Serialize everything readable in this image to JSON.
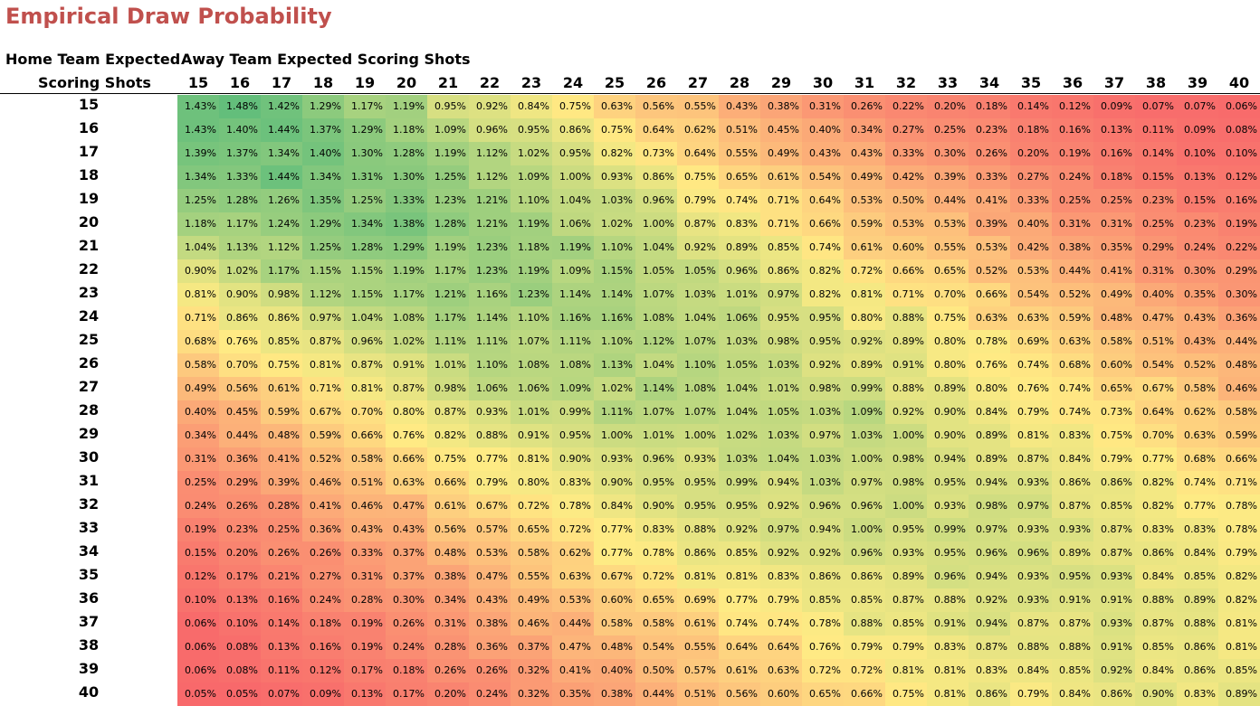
{
  "title": "Empirical Draw Probability",
  "row_header_line1": "Home Team Expected",
  "row_header_line2": "Scoring Shots",
  "col_header": "Away Team Expected Scoring Shots",
  "chart_data": {
    "type": "heatmap",
    "title": "Empirical Draw Probability",
    "xlabel": "Away Team Expected Scoring Shots",
    "ylabel": "Home Team Expected Scoring Shots",
    "x": [
      "15",
      "16",
      "17",
      "18",
      "19",
      "20",
      "21",
      "22",
      "23",
      "24",
      "25",
      "26",
      "27",
      "28",
      "29",
      "30",
      "31",
      "32",
      "33",
      "34",
      "35",
      "36",
      "37",
      "38",
      "39",
      "40"
    ],
    "y": [
      "15",
      "16",
      "17",
      "18",
      "19",
      "20",
      "21",
      "22",
      "23",
      "24",
      "25",
      "26",
      "27",
      "28",
      "29",
      "30",
      "31",
      "32",
      "33",
      "34",
      "35",
      "36",
      "37",
      "38",
      "39",
      "40"
    ],
    "colorscale": [
      "#f8696b",
      "#ffeb84",
      "#63be7b"
    ],
    "values": [
      [
        "1.43%",
        "1.48%",
        "1.42%",
        "1.29%",
        "1.17%",
        "1.19%",
        "0.95%",
        "0.92%",
        "0.84%",
        "0.75%",
        "0.63%",
        "0.56%",
        "0.55%",
        "0.43%",
        "0.38%",
        "0.31%",
        "0.26%",
        "0.22%",
        "0.20%",
        "0.18%",
        "0.14%",
        "0.12%",
        "0.09%",
        "0.07%",
        "0.07%",
        "0.06%"
      ],
      [
        "1.43%",
        "1.40%",
        "1.44%",
        "1.37%",
        "1.29%",
        "1.18%",
        "1.09%",
        "0.96%",
        "0.95%",
        "0.86%",
        "0.75%",
        "0.64%",
        "0.62%",
        "0.51%",
        "0.45%",
        "0.40%",
        "0.34%",
        "0.27%",
        "0.25%",
        "0.23%",
        "0.18%",
        "0.16%",
        "0.13%",
        "0.11%",
        "0.09%",
        "0.08%"
      ],
      [
        "1.39%",
        "1.37%",
        "1.34%",
        "1.40%",
        "1.30%",
        "1.28%",
        "1.19%",
        "1.12%",
        "1.02%",
        "0.95%",
        "0.82%",
        "0.73%",
        "0.64%",
        "0.55%",
        "0.49%",
        "0.43%",
        "0.43%",
        "0.33%",
        "0.30%",
        "0.26%",
        "0.20%",
        "0.19%",
        "0.16%",
        "0.14%",
        "0.10%",
        "0.10%"
      ],
      [
        "1.34%",
        "1.33%",
        "1.44%",
        "1.34%",
        "1.31%",
        "1.30%",
        "1.25%",
        "1.12%",
        "1.09%",
        "1.00%",
        "0.93%",
        "0.86%",
        "0.75%",
        "0.65%",
        "0.61%",
        "0.54%",
        "0.49%",
        "0.42%",
        "0.39%",
        "0.33%",
        "0.27%",
        "0.24%",
        "0.18%",
        "0.15%",
        "0.13%",
        "0.12%"
      ],
      [
        "1.25%",
        "1.28%",
        "1.26%",
        "1.35%",
        "1.25%",
        "1.33%",
        "1.23%",
        "1.21%",
        "1.10%",
        "1.04%",
        "1.03%",
        "0.96%",
        "0.79%",
        "0.74%",
        "0.71%",
        "0.64%",
        "0.53%",
        "0.50%",
        "0.44%",
        "0.41%",
        "0.33%",
        "0.25%",
        "0.25%",
        "0.23%",
        "0.15%",
        "0.16%"
      ],
      [
        "1.18%",
        "1.17%",
        "1.24%",
        "1.29%",
        "1.34%",
        "1.38%",
        "1.28%",
        "1.21%",
        "1.19%",
        "1.06%",
        "1.02%",
        "1.00%",
        "0.87%",
        "0.83%",
        "0.71%",
        "0.66%",
        "0.59%",
        "0.53%",
        "0.53%",
        "0.39%",
        "0.40%",
        "0.31%",
        "0.31%",
        "0.25%",
        "0.23%",
        "0.19%"
      ],
      [
        "1.04%",
        "1.13%",
        "1.12%",
        "1.25%",
        "1.28%",
        "1.29%",
        "1.19%",
        "1.23%",
        "1.18%",
        "1.19%",
        "1.10%",
        "1.04%",
        "0.92%",
        "0.89%",
        "0.85%",
        "0.74%",
        "0.61%",
        "0.60%",
        "0.55%",
        "0.53%",
        "0.42%",
        "0.38%",
        "0.35%",
        "0.29%",
        "0.24%",
        "0.22%"
      ],
      [
        "0.90%",
        "1.02%",
        "1.17%",
        "1.15%",
        "1.15%",
        "1.19%",
        "1.17%",
        "1.23%",
        "1.19%",
        "1.09%",
        "1.15%",
        "1.05%",
        "1.05%",
        "0.96%",
        "0.86%",
        "0.82%",
        "0.72%",
        "0.66%",
        "0.65%",
        "0.52%",
        "0.53%",
        "0.44%",
        "0.41%",
        "0.31%",
        "0.30%",
        "0.29%"
      ],
      [
        "0.81%",
        "0.90%",
        "0.98%",
        "1.12%",
        "1.15%",
        "1.17%",
        "1.21%",
        "1.16%",
        "1.23%",
        "1.14%",
        "1.14%",
        "1.07%",
        "1.03%",
        "1.01%",
        "0.97%",
        "0.82%",
        "0.81%",
        "0.71%",
        "0.70%",
        "0.66%",
        "0.54%",
        "0.52%",
        "0.49%",
        "0.40%",
        "0.35%",
        "0.30%"
      ],
      [
        "0.71%",
        "0.86%",
        "0.86%",
        "0.97%",
        "1.04%",
        "1.08%",
        "1.17%",
        "1.14%",
        "1.10%",
        "1.16%",
        "1.16%",
        "1.08%",
        "1.04%",
        "1.06%",
        "0.95%",
        "0.95%",
        "0.80%",
        "0.88%",
        "0.75%",
        "0.63%",
        "0.63%",
        "0.59%",
        "0.48%",
        "0.47%",
        "0.43%",
        "0.36%"
      ],
      [
        "0.68%",
        "0.76%",
        "0.85%",
        "0.87%",
        "0.96%",
        "1.02%",
        "1.11%",
        "1.11%",
        "1.07%",
        "1.11%",
        "1.10%",
        "1.12%",
        "1.07%",
        "1.03%",
        "0.98%",
        "0.95%",
        "0.92%",
        "0.89%",
        "0.80%",
        "0.78%",
        "0.69%",
        "0.63%",
        "0.58%",
        "0.51%",
        "0.43%",
        "0.44%"
      ],
      [
        "0.58%",
        "0.70%",
        "0.75%",
        "0.81%",
        "0.87%",
        "0.91%",
        "1.01%",
        "1.10%",
        "1.08%",
        "1.08%",
        "1.13%",
        "1.04%",
        "1.10%",
        "1.05%",
        "1.03%",
        "0.92%",
        "0.89%",
        "0.91%",
        "0.80%",
        "0.76%",
        "0.74%",
        "0.68%",
        "0.60%",
        "0.54%",
        "0.52%",
        "0.48%"
      ],
      [
        "0.49%",
        "0.56%",
        "0.61%",
        "0.71%",
        "0.81%",
        "0.87%",
        "0.98%",
        "1.06%",
        "1.06%",
        "1.09%",
        "1.02%",
        "1.14%",
        "1.08%",
        "1.04%",
        "1.01%",
        "0.98%",
        "0.99%",
        "0.88%",
        "0.89%",
        "0.80%",
        "0.76%",
        "0.74%",
        "0.65%",
        "0.67%",
        "0.58%",
        "0.46%"
      ],
      [
        "0.40%",
        "0.45%",
        "0.59%",
        "0.67%",
        "0.70%",
        "0.80%",
        "0.87%",
        "0.93%",
        "1.01%",
        "0.99%",
        "1.11%",
        "1.07%",
        "1.07%",
        "1.04%",
        "1.05%",
        "1.03%",
        "1.09%",
        "0.92%",
        "0.90%",
        "0.84%",
        "0.79%",
        "0.74%",
        "0.73%",
        "0.64%",
        "0.62%",
        "0.58%"
      ],
      [
        "0.34%",
        "0.44%",
        "0.48%",
        "0.59%",
        "0.66%",
        "0.76%",
        "0.82%",
        "0.88%",
        "0.91%",
        "0.95%",
        "1.00%",
        "1.01%",
        "1.00%",
        "1.02%",
        "1.03%",
        "0.97%",
        "1.03%",
        "1.00%",
        "0.90%",
        "0.89%",
        "0.81%",
        "0.83%",
        "0.75%",
        "0.70%",
        "0.63%",
        "0.59%"
      ],
      [
        "0.31%",
        "0.36%",
        "0.41%",
        "0.52%",
        "0.58%",
        "0.66%",
        "0.75%",
        "0.77%",
        "0.81%",
        "0.90%",
        "0.93%",
        "0.96%",
        "0.93%",
        "1.03%",
        "1.04%",
        "1.03%",
        "1.00%",
        "0.98%",
        "0.94%",
        "0.89%",
        "0.87%",
        "0.84%",
        "0.79%",
        "0.77%",
        "0.68%",
        "0.66%"
      ],
      [
        "0.25%",
        "0.29%",
        "0.39%",
        "0.46%",
        "0.51%",
        "0.63%",
        "0.66%",
        "0.79%",
        "0.80%",
        "0.83%",
        "0.90%",
        "0.95%",
        "0.95%",
        "0.99%",
        "0.94%",
        "1.03%",
        "0.97%",
        "0.98%",
        "0.95%",
        "0.94%",
        "0.93%",
        "0.86%",
        "0.86%",
        "0.82%",
        "0.74%",
        "0.71%"
      ],
      [
        "0.24%",
        "0.26%",
        "0.28%",
        "0.41%",
        "0.46%",
        "0.47%",
        "0.61%",
        "0.67%",
        "0.72%",
        "0.78%",
        "0.84%",
        "0.90%",
        "0.95%",
        "0.95%",
        "0.92%",
        "0.96%",
        "0.96%",
        "1.00%",
        "0.93%",
        "0.98%",
        "0.97%",
        "0.87%",
        "0.85%",
        "0.82%",
        "0.77%",
        "0.78%"
      ],
      [
        "0.19%",
        "0.23%",
        "0.25%",
        "0.36%",
        "0.43%",
        "0.43%",
        "0.56%",
        "0.57%",
        "0.65%",
        "0.72%",
        "0.77%",
        "0.83%",
        "0.88%",
        "0.92%",
        "0.97%",
        "0.94%",
        "1.00%",
        "0.95%",
        "0.99%",
        "0.97%",
        "0.93%",
        "0.93%",
        "0.87%",
        "0.83%",
        "0.83%",
        "0.78%"
      ],
      [
        "0.15%",
        "0.20%",
        "0.26%",
        "0.26%",
        "0.33%",
        "0.37%",
        "0.48%",
        "0.53%",
        "0.58%",
        "0.62%",
        "0.77%",
        "0.78%",
        "0.86%",
        "0.85%",
        "0.92%",
        "0.92%",
        "0.96%",
        "0.93%",
        "0.95%",
        "0.96%",
        "0.96%",
        "0.89%",
        "0.87%",
        "0.86%",
        "0.84%",
        "0.79%"
      ],
      [
        "0.12%",
        "0.17%",
        "0.21%",
        "0.27%",
        "0.31%",
        "0.37%",
        "0.38%",
        "0.47%",
        "0.55%",
        "0.63%",
        "0.67%",
        "0.72%",
        "0.81%",
        "0.81%",
        "0.83%",
        "0.86%",
        "0.86%",
        "0.89%",
        "0.96%",
        "0.94%",
        "0.93%",
        "0.95%",
        "0.93%",
        "0.84%",
        "0.85%",
        "0.82%"
      ],
      [
        "0.10%",
        "0.13%",
        "0.16%",
        "0.24%",
        "0.28%",
        "0.30%",
        "0.34%",
        "0.43%",
        "0.49%",
        "0.53%",
        "0.60%",
        "0.65%",
        "0.69%",
        "0.77%",
        "0.79%",
        "0.85%",
        "0.85%",
        "0.87%",
        "0.88%",
        "0.92%",
        "0.93%",
        "0.91%",
        "0.91%",
        "0.88%",
        "0.89%",
        "0.82%"
      ],
      [
        "0.06%",
        "0.10%",
        "0.14%",
        "0.18%",
        "0.19%",
        "0.26%",
        "0.31%",
        "0.38%",
        "0.46%",
        "0.44%",
        "0.58%",
        "0.58%",
        "0.61%",
        "0.74%",
        "0.74%",
        "0.78%",
        "0.88%",
        "0.85%",
        "0.91%",
        "0.94%",
        "0.87%",
        "0.87%",
        "0.93%",
        "0.87%",
        "0.88%",
        "0.81%"
      ],
      [
        "0.06%",
        "0.08%",
        "0.13%",
        "0.16%",
        "0.19%",
        "0.24%",
        "0.28%",
        "0.36%",
        "0.37%",
        "0.47%",
        "0.48%",
        "0.54%",
        "0.55%",
        "0.64%",
        "0.64%",
        "0.76%",
        "0.79%",
        "0.79%",
        "0.83%",
        "0.87%",
        "0.88%",
        "0.88%",
        "0.91%",
        "0.85%",
        "0.86%",
        "0.81%"
      ],
      [
        "0.06%",
        "0.08%",
        "0.11%",
        "0.12%",
        "0.17%",
        "0.18%",
        "0.26%",
        "0.26%",
        "0.32%",
        "0.41%",
        "0.40%",
        "0.50%",
        "0.57%",
        "0.61%",
        "0.63%",
        "0.72%",
        "0.72%",
        "0.81%",
        "0.81%",
        "0.83%",
        "0.84%",
        "0.85%",
        "0.92%",
        "0.84%",
        "0.86%",
        "0.85%"
      ],
      [
        "0.05%",
        "0.05%",
        "0.07%",
        "0.09%",
        "0.13%",
        "0.17%",
        "0.20%",
        "0.24%",
        "0.32%",
        "0.35%",
        "0.38%",
        "0.44%",
        "0.51%",
        "0.56%",
        "0.60%",
        "0.65%",
        "0.66%",
        "0.75%",
        "0.81%",
        "0.86%",
        "0.79%",
        "0.84%",
        "0.86%",
        "0.90%",
        "0.83%",
        "0.89%"
      ]
    ]
  }
}
